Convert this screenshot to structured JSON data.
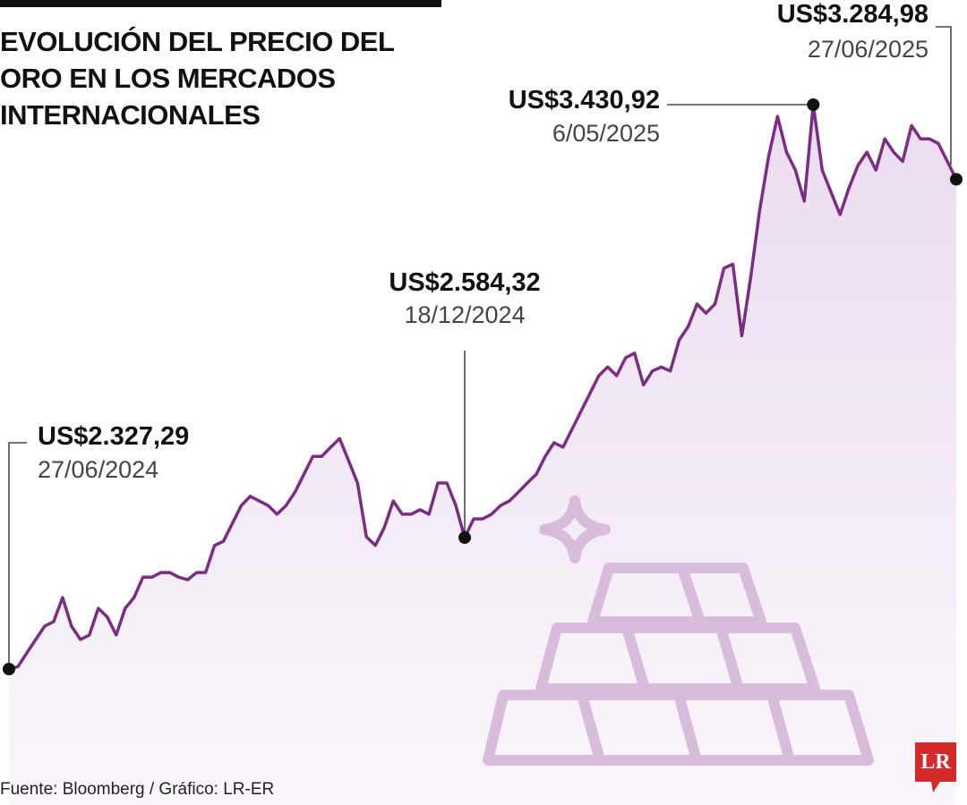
{
  "chart_data": {
    "type": "line",
    "title": "EVOLUCIÓN DEL PRECIO DEL ORO EN LOS MERCADOS INTERNACIONALES",
    "source": "Fuente: Bloomberg / Gráfico: LR-ER",
    "color": "#7b2d83",
    "categories": [
      "27/06/2024",
      null,
      null,
      null,
      null,
      null,
      null,
      null,
      null,
      null,
      null,
      null,
      null,
      null,
      null,
      null,
      null,
      null,
      null,
      null,
      null,
      null,
      null,
      null,
      null,
      null,
      null,
      null,
      null,
      null,
      null,
      null,
      null,
      null,
      null,
      null,
      null,
      null,
      null,
      null,
      null,
      null,
      null,
      null,
      null,
      null,
      null,
      null,
      null,
      null,
      null,
      "18/12/2024",
      null,
      null,
      null,
      null,
      null,
      null,
      null,
      null,
      null,
      null,
      null,
      null,
      null,
      null,
      null,
      null,
      null,
      null,
      null,
      null,
      null,
      null,
      null,
      null,
      null,
      null,
      null,
      null,
      null,
      null,
      null,
      null,
      null,
      null,
      null,
      null,
      null,
      null,
      "6/05/2025",
      null,
      null,
      null,
      null,
      null,
      null,
      null,
      null,
      null,
      null,
      null,
      null,
      null,
      null,
      null,
      "27/06/2025"
    ],
    "values": [
      2327.29,
      2332,
      2359,
      2385,
      2411,
      2420,
      2467,
      2411,
      2385,
      2394,
      2446,
      2429,
      2394,
      2446,
      2467,
      2507,
      2507,
      2516,
      2516,
      2507,
      2502,
      2516,
      2516,
      2569,
      2577,
      2612,
      2647,
      2665,
      2656,
      2647,
      2630,
      2647,
      2673,
      2708,
      2743,
      2743,
      2761,
      2778,
      2735,
      2691,
      2586,
      2569,
      2604,
      2656,
      2630,
      2630,
      2639,
      2630,
      2691,
      2691,
      2647,
      2584.32,
      2621,
      2621,
      2630,
      2647,
      2656,
      2673,
      2691,
      2708,
      2743,
      2770,
      2761,
      2796,
      2831,
      2866,
      2901,
      2918,
      2901,
      2936,
      2945,
      2883,
      2910,
      2918,
      2910,
      2971,
      2997,
      3041,
      3023,
      3041,
      3111,
      3119,
      2979,
      3093,
      3224,
      3329,
      3408,
      3338,
      3303,
      3242,
      3430.92,
      3303,
      3259,
      3216,
      3268,
      3312,
      3338,
      3303,
      3364,
      3338,
      3320,
      3390,
      3364,
      3364,
      3355,
      3320,
      3284.98
    ],
    "value_labels": [
      "US$2.327,29",
      null,
      null,
      null,
      null,
      null,
      null,
      null,
      null,
      null,
      null,
      null,
      null,
      null,
      null,
      null,
      null,
      null,
      null,
      null,
      null,
      null,
      null,
      null,
      null,
      null,
      null,
      null,
      null,
      null,
      null,
      null,
      null,
      null,
      null,
      null,
      null,
      null,
      null,
      null,
      null,
      null,
      null,
      null,
      null,
      null,
      null,
      null,
      null,
      null,
      null,
      "US$2.584,32",
      null,
      null,
      null,
      null,
      null,
      null,
      null,
      null,
      null,
      null,
      null,
      null,
      null,
      null,
      null,
      null,
      null,
      null,
      null,
      null,
      null,
      null,
      null,
      null,
      null,
      null,
      null,
      null,
      null,
      null,
      null,
      null,
      null,
      null,
      null,
      null,
      null,
      null,
      "US$3.430,92",
      null,
      null,
      null,
      null,
      null,
      null,
      null,
      null,
      null,
      null,
      null,
      null,
      null,
      null,
      null,
      "US$3.284,98"
    ]
  },
  "logo": "LR"
}
